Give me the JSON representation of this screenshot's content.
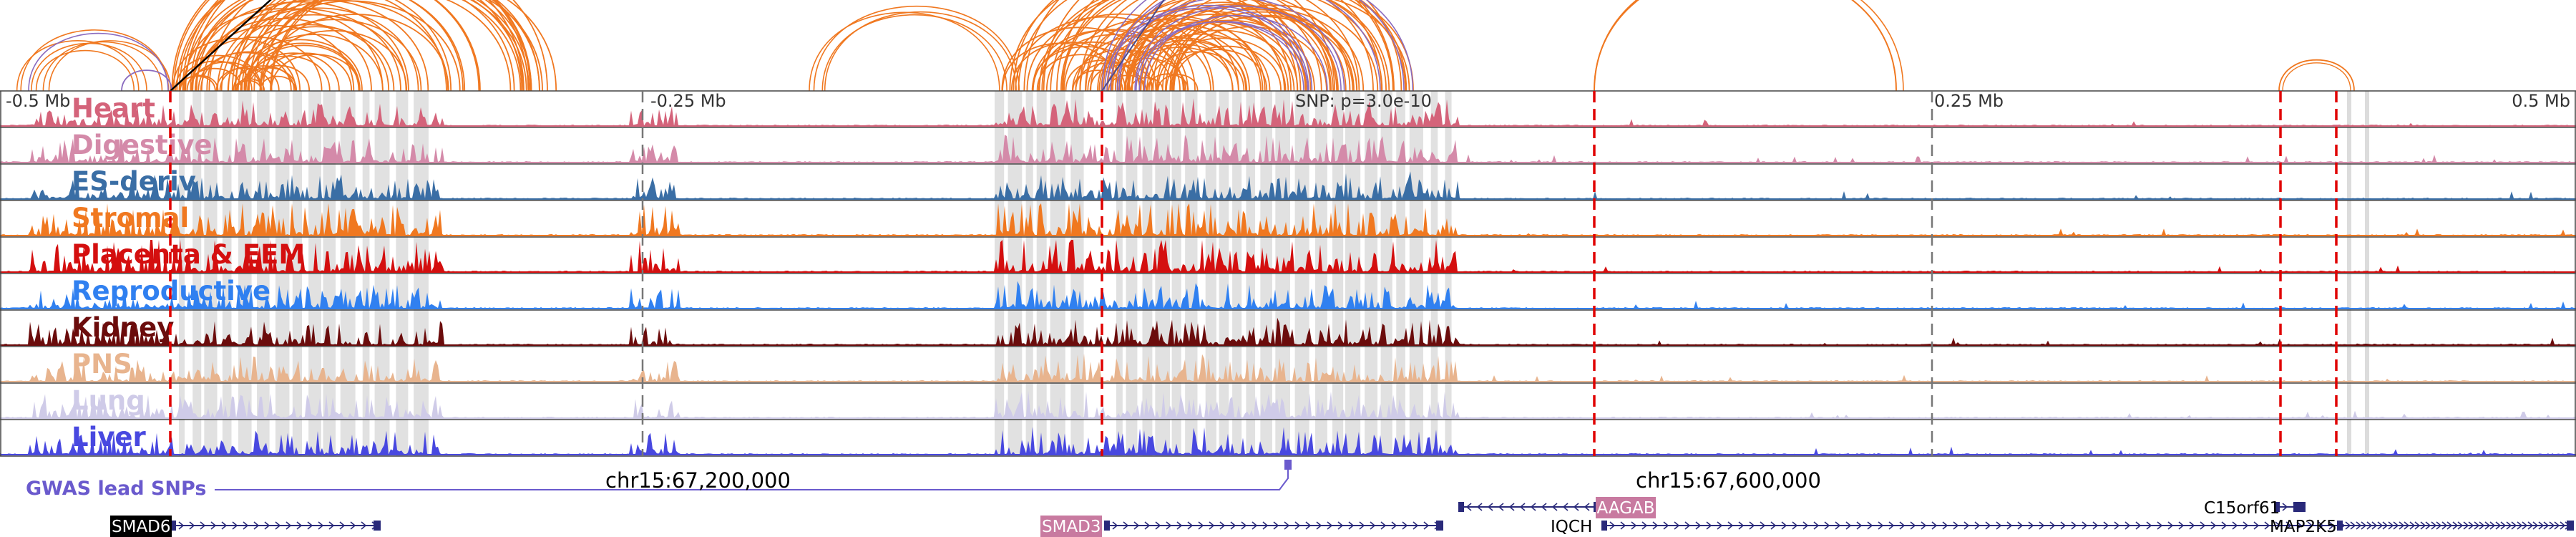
{
  "axis": {
    "ticks": [
      {
        "label": "-0.5 Mb",
        "pos": -0.5
      },
      {
        "label": "-0.25 Mb",
        "pos": -0.25
      },
      {
        "label": "SNP: p=3.0e-10",
        "pos": 0.0
      },
      {
        "label": "0.25 Mb",
        "pos": 0.25
      },
      {
        "label": "0.5 Mb",
        "pos": 0.5
      }
    ],
    "range": [
      -0.5,
      0.5
    ]
  },
  "tracks": [
    {
      "name": "Heart",
      "color": "#d4637a"
    },
    {
      "name": "Digestive",
      "color": "#d48aa9"
    },
    {
      "name": "ES-deriv",
      "color": "#3a6ea5"
    },
    {
      "name": "Stromal",
      "color": "#f07820"
    },
    {
      "name": "Placenta & EEM",
      "color": "#d40f0f"
    },
    {
      "name": "Reproductive",
      "color": "#3080f0"
    },
    {
      "name": "Kidney",
      "color": "#6b0c0c"
    },
    {
      "name": "PNS",
      "color": "#e8b48e"
    },
    {
      "name": "Lung",
      "color": "#cfcbe8"
    },
    {
      "name": "Liver",
      "color": "#4848e0"
    }
  ],
  "gwas": {
    "label": "GWAS lead SNPs",
    "color": "#6a5acd"
  },
  "coordinates": {
    "left": "chr15:67,200,000",
    "right": "chr15:67,600,000"
  },
  "genes": [
    {
      "name": "SMAD6",
      "style": "black"
    },
    {
      "name": "SMAD3",
      "style": "pink"
    },
    {
      "name": "AAGAB",
      "style": "pink"
    },
    {
      "name": "IQCH",
      "style": "plain"
    },
    {
      "name": "C15orf61",
      "style": "plain"
    },
    {
      "name": "MAP2K5",
      "style": "plain"
    }
  ],
  "colors": {
    "arc_orange": "#f07820",
    "arc_purple": "#8a6bbf",
    "highlight_line": "#e00000",
    "shade": "#dcdcdc",
    "gene_dark": "#2a2a7a"
  }
}
